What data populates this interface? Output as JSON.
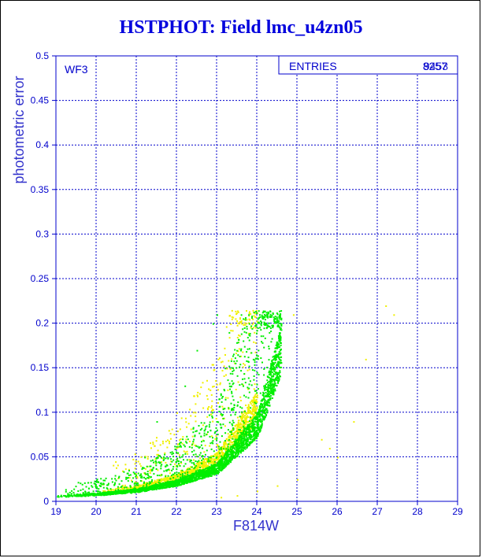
{
  "window": {
    "title": "HSTPHOT: Field lmc_u4zn05"
  },
  "chart_data": {
    "type": "scatter",
    "title": "HSTPHOT: Field lmc_u4zn05",
    "xlabel": "F814W",
    "ylabel": "photometric error",
    "xlim": [
      19,
      29
    ],
    "ylim": [
      0,
      0.5
    ],
    "xticks": [
      "19",
      "20",
      "21",
      "22",
      "23",
      "24",
      "25",
      "26",
      "27",
      "28",
      "29"
    ],
    "yticks": [
      "0",
      "0.05",
      "0.1",
      "0.15",
      "0.2",
      "0.25",
      "0.3",
      "0.35",
      "0.4",
      "0.45",
      "0.5"
    ],
    "grid": true,
    "annotation": "WF3",
    "stats_box": {
      "label": "ENTRIES",
      "value_a": "8257",
      "value_b": "9453"
    },
    "series": [
      {
        "color": "#00ee00",
        "envelope": [
          [
            19,
            0.006
          ],
          [
            20,
            0.008
          ],
          [
            21,
            0.012
          ],
          [
            22,
            0.02
          ],
          [
            23,
            0.035
          ],
          [
            24,
            0.08
          ],
          [
            24.6,
            0.16
          ]
        ],
        "points": [
          [
            20.8,
            0.03
          ],
          [
            21.2,
            0.05
          ],
          [
            21.5,
            0.09
          ],
          [
            22.2,
            0.13
          ],
          [
            22.5,
            0.17
          ],
          [
            22.9,
            0.2
          ],
          [
            23.0,
            0.21
          ],
          [
            23.3,
            0.19
          ],
          [
            23.6,
            0.21
          ],
          [
            23.8,
            0.2
          ],
          [
            24.1,
            0.18
          ],
          [
            24.3,
            0.19
          ],
          [
            24.6,
            0.2
          ],
          [
            24.4,
            0.15
          ],
          [
            23.9,
            0.16
          ],
          [
            23.2,
            0.15
          ]
        ]
      },
      {
        "color": "#f0f000",
        "envelope": [
          [
            20,
            0.01
          ],
          [
            21,
            0.015
          ],
          [
            22,
            0.025
          ],
          [
            23,
            0.045
          ],
          [
            24,
            0.1
          ]
        ],
        "points": [
          [
            22.0,
            0.1
          ],
          [
            22.5,
            0.12
          ],
          [
            21.8,
            0.08
          ],
          [
            24.9,
            0.21
          ],
          [
            25.6,
            0.07
          ],
          [
            25.8,
            0.06
          ],
          [
            26.4,
            0.09
          ],
          [
            27.2,
            0.22
          ],
          [
            27.4,
            0.21
          ],
          [
            26.0,
            0.05
          ],
          [
            26.7,
            0.16
          ],
          [
            23.1,
            0.005
          ],
          [
            23.5,
            0.007
          ],
          [
            24.0,
            0.012
          ],
          [
            24.5,
            0.018
          ],
          [
            25.0,
            0.025
          ]
        ]
      }
    ]
  }
}
